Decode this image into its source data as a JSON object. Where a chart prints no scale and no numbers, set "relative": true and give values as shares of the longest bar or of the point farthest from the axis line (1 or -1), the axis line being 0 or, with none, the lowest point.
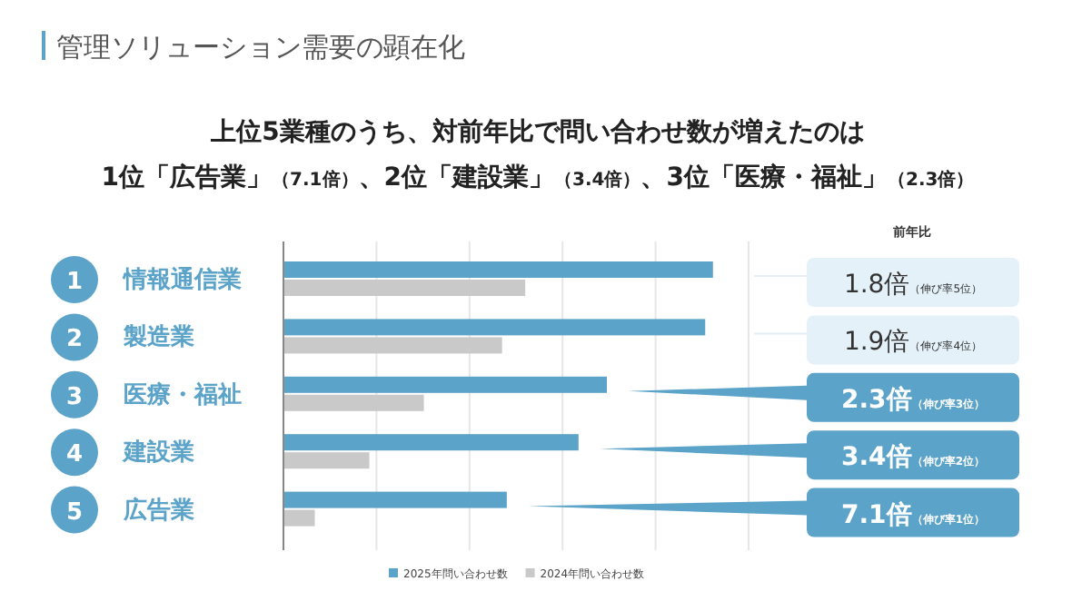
{
  "chart_data": {
    "type": "bar",
    "orientation": "horizontal",
    "relative": true,
    "title": "管理ソリューション需要の顕在化",
    "subtitle": "上位5業種のうち、対前年比で問い合わせ数が増えたのは\n1位「広告業」（7.1倍）、2位「建設業」（3.4倍）、3位「医療・福祉」（2.3倍）",
    "categories": [
      "情報通信業",
      "製造業",
      "医療・福祉",
      "建設業",
      "広告業"
    ],
    "series": [
      {
        "name": "2025年問い合わせ数",
        "color": "#5ba3c9",
        "values": [
          1,
          0.982,
          0.753,
          0.687,
          0.52
        ]
      },
      {
        "name": "2024年問い合わせ数",
        "color": "#c9c9c9",
        "values": [
          0.563,
          0.509,
          0.327,
          0.2,
          0.073
        ]
      }
    ],
    "grid": "x",
    "legend": "bottom",
    "annotations": [
      "1",
      "2",
      "3",
      "4",
      "5",
      "前年比",
      "1.8倍（伸び率5位）",
      "1.9倍（伸び率4位）",
      "2.3倍（伸び率3位）",
      "3.4倍（伸び率2位）",
      "7.1倍（伸び率1位）"
    ]
  }
}
